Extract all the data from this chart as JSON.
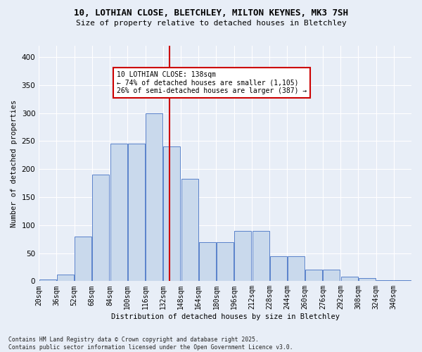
{
  "title_line1": "10, LOTHIAN CLOSE, BLETCHLEY, MILTON KEYNES, MK3 7SH",
  "title_line2": "Size of property relative to detached houses in Bletchley",
  "xlabel": "Distribution of detached houses by size in Bletchley",
  "ylabel": "Number of detached properties",
  "bins": [
    20,
    36,
    52,
    68,
    84,
    100,
    116,
    132,
    148,
    164,
    180,
    196,
    212,
    228,
    244,
    260,
    276,
    292,
    308,
    324,
    340,
    356
  ],
  "bar_heights": [
    3,
    12,
    80,
    190,
    245,
    245,
    300,
    240,
    182,
    70,
    70,
    90,
    90,
    45,
    45,
    20,
    20,
    8,
    5,
    2,
    2
  ],
  "bar_color": "#c9d9ec",
  "bar_edge_color": "#4472c4",
  "property_size": 138,
  "vline_color": "#cc0000",
  "annotation_text": "10 LOTHIAN CLOSE: 138sqm\n← 74% of detached houses are smaller (1,105)\n26% of semi-detached houses are larger (387) →",
  "annotation_box_color": "#ffffff",
  "annotation_box_edge": "#cc0000",
  "footer": "Contains HM Land Registry data © Crown copyright and database right 2025.\nContains public sector information licensed under the Open Government Licence v3.0.",
  "ylim": [
    0,
    420
  ],
  "yticks": [
    0,
    50,
    100,
    150,
    200,
    250,
    300,
    350,
    400
  ],
  "xtick_labels": [
    "20sqm",
    "36sqm",
    "52sqm",
    "68sqm",
    "84sqm",
    "100sqm",
    "116sqm",
    "132sqm",
    "148sqm",
    "164sqm",
    "180sqm",
    "196sqm",
    "212sqm",
    "228sqm",
    "244sqm",
    "260sqm",
    "276sqm",
    "292sqm",
    "308sqm",
    "324sqm",
    "340sqm"
  ],
  "background_color": "#e8eef7",
  "grid_color": "#ffffff",
  "title_fontsize": 9,
  "subtitle_fontsize": 8,
  "axis_fontsize": 7.5,
  "tick_fontsize": 7,
  "footer_fontsize": 5.8
}
